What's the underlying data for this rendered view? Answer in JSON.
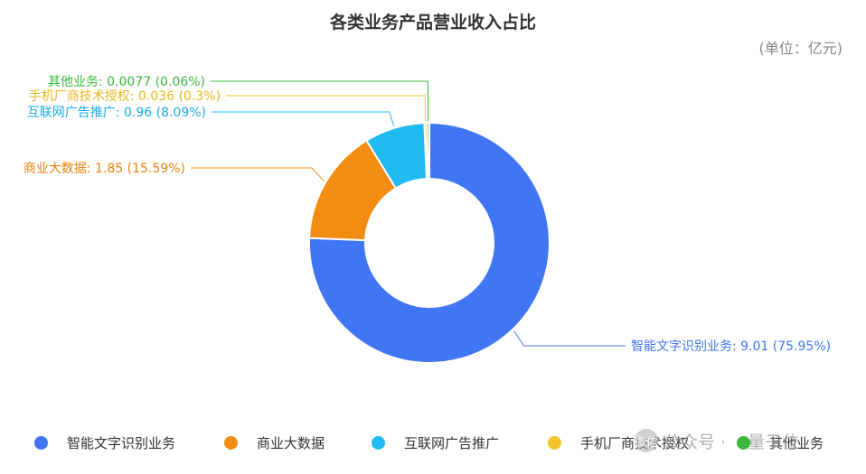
{
  "chart_data": {
    "type": "pie",
    "title": "各类业务产品营业收入占比",
    "unit_label": "(单位：亿元)",
    "slices": [
      {
        "name": "智能文字识别业务",
        "value": 9.01,
        "percent": "75.95%",
        "label": "智能文字识别业务: 9.01 (75.95%)",
        "color": "#4075F3"
      },
      {
        "name": "商业大数据",
        "value": 1.85,
        "percent": "15.59%",
        "label": "商业大数据: 1.85 (15.59%)",
        "color": "#F28C12"
      },
      {
        "name": "互联网广告推广",
        "value": 0.96,
        "percent": "8.09%",
        "label": "互联网广告推广: 0.96 (8.09%)",
        "color": "#20BBF1"
      },
      {
        "name": "手机厂商技术授权",
        "value": 0.036,
        "percent": "0.3%",
        "label": "手机厂商技术授权: 0.036 (0.3%)",
        "color": "#F2C42A"
      },
      {
        "name": "其他业务",
        "value": 0.0077,
        "percent": "0.06%",
        "label": "其他业务: 0.0077 (0.06%)",
        "color": "#3CB93C"
      }
    ],
    "legend_position": "bottom"
  },
  "watermark": {
    "logo": "微信",
    "source": "公众号 ·",
    "name": "量子位"
  }
}
